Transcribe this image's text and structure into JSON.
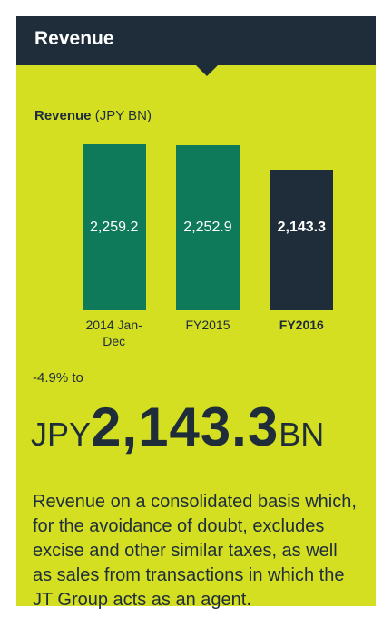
{
  "header": {
    "title": "Revenue"
  },
  "chart_data": {
    "type": "bar",
    "title": "Revenue",
    "unit": "(JPY BN)",
    "categories": [
      "2014 Jan-Dec",
      "FY2015",
      "FY2016"
    ],
    "values": [
      2259.2,
      2252.9,
      2143.3
    ],
    "value_labels": [
      "2,259.2",
      "2,252.9",
      "2,143.3"
    ],
    "colors": [
      "#0f7a5a",
      "#0f7a5a",
      "#1f2d3a"
    ],
    "highlight_color": "#1f2d3a",
    "ylim": [
      1500,
      2300
    ]
  },
  "highlight": {
    "change": "-4.9% to",
    "prefix": "JPY",
    "value": "2,143.3",
    "suffix": "BN"
  },
  "description": "Revenue on a consolidated basis which, for the avoidance of doubt, excludes excise and other similar taxes, as well as sales from transactions in which the JT Group acts as an agent."
}
